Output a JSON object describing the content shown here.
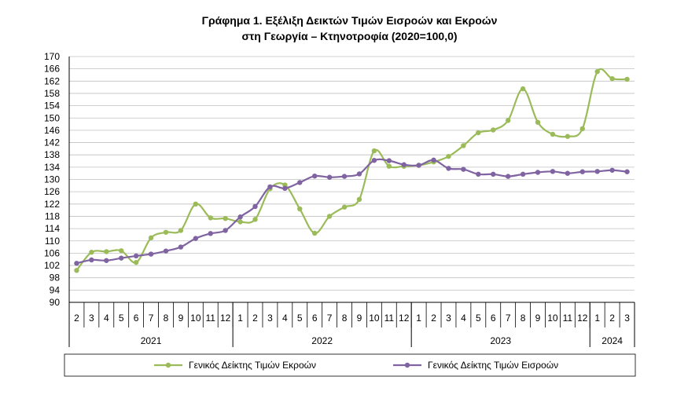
{
  "title_line1": "Γράφημα 1. Εξέλιξη Δεικτών Τιμών Εισροών και Εκροών",
  "title_line2": "στη Γεωργία – Κτηνοτροφία (2020=100,0)",
  "colors": {
    "output": "#9bbb59",
    "input": "#8064a2"
  },
  "chart_data": {
    "type": "line",
    "title": "Γράφημα 1. Εξέλιξη Δεικτών Τιμών Εισροών και Εκροών στη Γεωργία – Κτηνοτροφία (2020=100,0)",
    "xlabel": "",
    "ylabel": "",
    "ylim": [
      90,
      170
    ],
    "yticks": [
      "90",
      "94",
      "98",
      "102",
      "106",
      "110",
      "114",
      "118",
      "122",
      "126",
      "130",
      "134",
      "138",
      "142",
      "146",
      "150",
      "154",
      "158",
      "162",
      "166",
      "170"
    ],
    "grid": true,
    "legend_position": "bottom",
    "categories": [
      "2",
      "3",
      "4",
      "5",
      "6",
      "7",
      "8",
      "9",
      "10",
      "11",
      "12",
      "1",
      "2",
      "3",
      "4",
      "5",
      "6",
      "7",
      "8",
      "9",
      "10",
      "11",
      "12",
      "1",
      "2",
      "3",
      "4",
      "5",
      "6",
      "7",
      "8",
      "9",
      "10",
      "11",
      "12",
      "1",
      "2",
      "3"
    ],
    "years": [
      {
        "label": "2021",
        "start": 0,
        "count": 11
      },
      {
        "label": "2022",
        "start": 11,
        "count": 12
      },
      {
        "label": "2023",
        "start": 23,
        "count": 12
      },
      {
        "label": "2024",
        "start": 35,
        "count": 3
      }
    ],
    "series": [
      {
        "name": "Γενικός Δείκτης Τιμών Εκροών",
        "values": [
          100.4,
          106.3,
          106.5,
          106.8,
          103.0,
          111.0,
          112.8,
          113.4,
          122.0,
          117.5,
          117.3,
          116.2,
          117.0,
          127.0,
          128.2,
          120.4,
          112.5,
          118.0,
          121.0,
          123.5,
          139.3,
          134.3,
          134.3,
          134.6,
          135.7,
          137.5,
          141.0,
          145.2,
          146.1,
          149.2,
          159.5,
          148.6,
          144.7,
          144.0,
          146.5,
          165.1,
          162.8,
          162.6
        ]
      },
      {
        "name": "Γενικός Δείκτης Τιμών Εισροών",
        "values": [
          102.7,
          103.8,
          103.6,
          104.4,
          105.1,
          105.7,
          106.7,
          108.0,
          110.8,
          112.4,
          113.4,
          117.8,
          121.2,
          127.6,
          127.1,
          129.0,
          131.1,
          130.7,
          131.0,
          131.8,
          136.2,
          136.1,
          134.8,
          134.6,
          136.3,
          133.6,
          133.3,
          131.7,
          131.7,
          131.0,
          131.7,
          132.3,
          132.6,
          132.0,
          132.5,
          132.6,
          133.0,
          132.5
        ]
      }
    ]
  }
}
